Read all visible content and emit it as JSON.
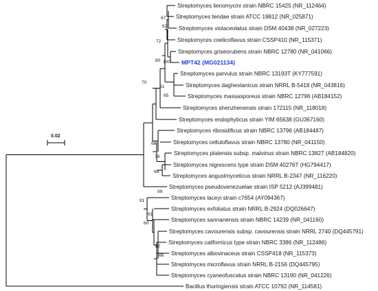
{
  "tree": {
    "scale_label": "0.02",
    "highlight_color": "#1f3fd2",
    "taxa": [
      "Streptomyces lienomycini strain NBRC 15425 (NR_112464)",
      "Streptomyces tendae strain ATCC 19812 (NR_025871)",
      "Streptomyces violaceolatus strain DSM 40438 (NR_027223)",
      "Streptomyces coelicoflavus strain CSSP410 (NR_115371)",
      "Streptomyces griseorubens strain NBRC 12780 (NR_041066)",
      "MPT42 (MG021134)",
      "Streptomyces parvulus strain NBRC 13193T (KY777591)",
      "Streptomyces daghestanicus strain NRRL B-5418 (NR_043816)",
      "Streptomyces massasporeus strain NBRC 12796 (AB184152)",
      "Streptomyces shenzhenensis strain 172115 (NR_118018)",
      "Streptomyces endophyticus strain YIM 65638 (GU367160)",
      "Streptomyces ribosidificus strain NBRC 13796 (AB184487)",
      "Streptomyces celluloflavus strain NBRC 13780 (NR_041150)",
      "Streptomyces platensis subsp. malvinus strain NBRC 13827 (AB184820)",
      "Streptomyces nigrescens type strain DSM 40276T (HG794417)",
      "Streptomyces angustmyceticus strain NRRL B-2347 (NR_116220)",
      "Streptomyces pseudovenezuelae strain ISP 5212 (AJ399481)",
      "Streptomyces laceyi strain c7654 (AY094367)",
      "Streptomyces exfoliatus strain NRRL B-2924 (DQ026647)",
      "Streptomyces sannanensis strain NBRC 14239 (NR_041160)",
      "Streptomyces cavourensis subsp. cavourensis strain NRRL 2740 (DQ445791)",
      "Streptomyces californicus type strain NBRC 3386 (NR_112486)",
      "Streptomyces albovinaceus strain CSSP418 (NR_115373)",
      "Streptomyces microflavus strain NRRL B-2156 (DQ445795)",
      "Streptomyces cyaneofuscatus strain NBRC 13190 (NR_041226)",
      "Bacillus thuringiensis strain ATCC 10792 (NR_114581)"
    ],
    "bootstrap": [
      "67",
      "62",
      "72",
      "100",
      "80",
      "61",
      "85",
      "70",
      "66",
      "78",
      "68",
      "99",
      "81",
      "61",
      "60",
      "87",
      "66"
    ]
  }
}
